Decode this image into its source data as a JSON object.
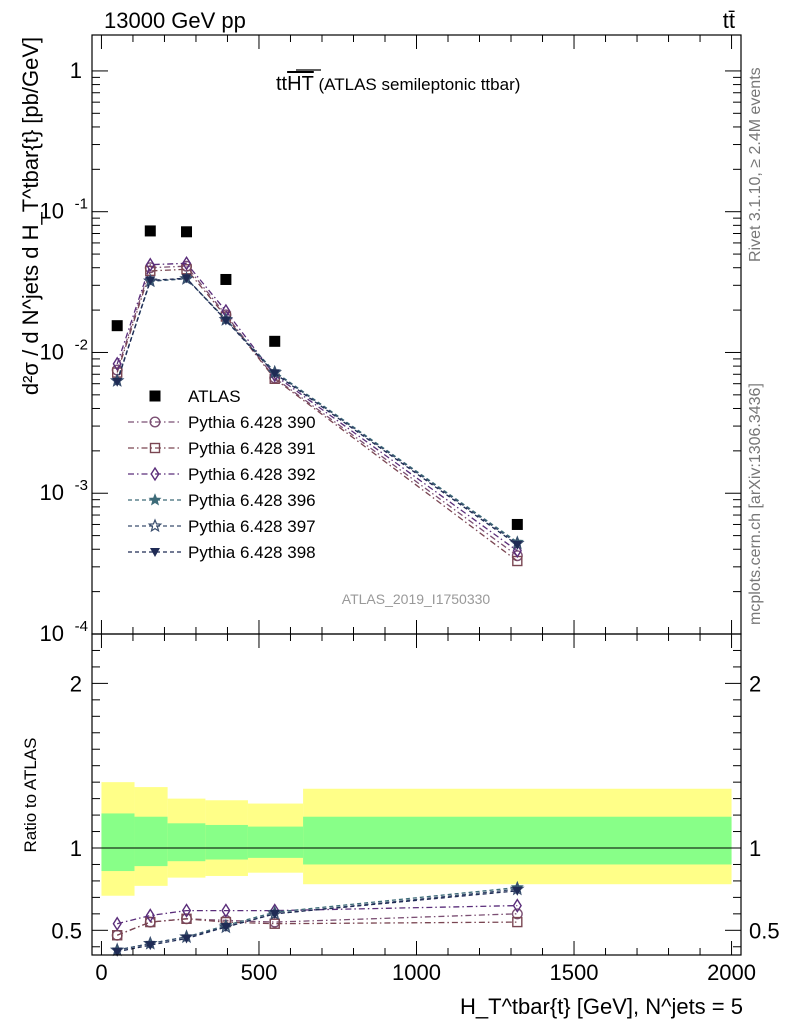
{
  "header": {
    "left": "13000 GeV pp",
    "right": "tt̄"
  },
  "side_notes": {
    "rivet": "Rivet 3.1.10, ≥ 2.4M events",
    "mcplots": "mcplots.cern.ch [arXiv:1306.3436]"
  },
  "chart_data": [
    {
      "type": "scatter",
      "panel": "main",
      "title": "ttHT (ATLAS semileptonic ttbar)",
      "watermark": "ATLAS_2019_I1750330",
      "ylabel": "d²σ / d N^jets d H_T^tbar{t} [pb/GeV]",
      "yscale": "log",
      "ylim": [
        0.0001,
        1.8
      ],
      "yticks": [
        "10^-4",
        "10^-3",
        "10^-2",
        "10^-1",
        "1"
      ],
      "x": [
        50,
        155,
        270,
        395,
        550,
        1320
      ],
      "series": [
        {
          "name": "ATLAS",
          "values": [
            0.0155,
            0.073,
            0.072,
            0.033,
            0.012,
            0.0006
          ],
          "color": "#000000",
          "marker": "square-filled"
        },
        {
          "name": "Pythia 6.428 390",
          "values": [
            0.0075,
            0.04,
            0.041,
            0.0185,
            0.0066,
            0.00036
          ],
          "color": "#7b4f73",
          "marker": "circle-open"
        },
        {
          "name": "Pythia 6.428 391",
          "values": [
            0.0072,
            0.038,
            0.039,
            0.018,
            0.0065,
            0.00033
          ],
          "color": "#7a4652",
          "marker": "square-open"
        },
        {
          "name": "Pythia 6.428 392",
          "values": [
            0.0083,
            0.042,
            0.043,
            0.0197,
            0.0069,
            0.00039
          ],
          "color": "#5a2d7a",
          "marker": "diamond-open"
        },
        {
          "name": "Pythia 6.428 396",
          "values": [
            0.0063,
            0.032,
            0.0335,
            0.0172,
            0.0073,
            0.00045
          ],
          "color": "#3d6b78",
          "marker": "star-filled"
        },
        {
          "name": "Pythia 6.428 397",
          "values": [
            0.0063,
            0.0322,
            0.0334,
            0.0171,
            0.0072,
            0.00044
          ],
          "color": "#3a4e6e",
          "marker": "star-open"
        },
        {
          "name": "Pythia 6.428 398",
          "values": [
            0.0062,
            0.0325,
            0.0337,
            0.0169,
            0.0071,
            0.00043
          ],
          "color": "#1f2b55",
          "marker": "triangle-down-filled"
        }
      ]
    },
    {
      "type": "line",
      "panel": "ratio",
      "ylabel": "Ratio to ATLAS",
      "xlabel": "H_T^tbar{t} [GeV], N^jets = 5",
      "xlim": [
        -30,
        2030
      ],
      "ylim": [
        0.35,
        2.3
      ],
      "xticks": [
        0,
        500,
        1000,
        1500,
        2000
      ],
      "yticks": [
        0.5,
        1,
        2
      ],
      "bands": {
        "bins": [
          [
            0,
            105
          ],
          [
            105,
            210
          ],
          [
            210,
            330
          ],
          [
            330,
            465
          ],
          [
            465,
            640
          ],
          [
            640,
            2000
          ]
        ],
        "yellow": [
          [
            0.71,
            1.4
          ],
          [
            0.77,
            1.37
          ],
          [
            0.82,
            1.3
          ],
          [
            0.83,
            1.29
          ],
          [
            0.85,
            1.27
          ],
          [
            0.78,
            1.36
          ]
        ],
        "green": [
          [
            0.86,
            1.21
          ],
          [
            0.89,
            1.19
          ],
          [
            0.92,
            1.15
          ],
          [
            0.93,
            1.14
          ],
          [
            0.94,
            1.13
          ],
          [
            0.9,
            1.19
          ]
        ],
        "yellow_color": "#ffff88",
        "green_color": "#88ff88"
      },
      "x": [
        50,
        155,
        270,
        395,
        550,
        1320
      ],
      "series": [
        {
          "name": "Pythia 6.428 390",
          "values": [
            0.47,
            0.55,
            0.57,
            0.56,
            0.55,
            0.6
          ],
          "color": "#7b4f73",
          "marker": "circle-open"
        },
        {
          "name": "Pythia 6.428 391",
          "values": [
            0.47,
            0.55,
            0.57,
            0.55,
            0.54,
            0.55
          ],
          "color": "#7a4652",
          "marker": "square-open"
        },
        {
          "name": "Pythia 6.428 392",
          "values": [
            0.54,
            0.59,
            0.62,
            0.62,
            0.62,
            0.65
          ],
          "color": "#5a2d7a",
          "marker": "diamond-open"
        },
        {
          "name": "Pythia 6.428 396",
          "values": [
            0.38,
            0.42,
            0.46,
            0.53,
            0.61,
            0.76
          ],
          "color": "#3d6b78",
          "marker": "star-filled"
        },
        {
          "name": "Pythia 6.428 397",
          "values": [
            0.38,
            0.42,
            0.46,
            0.52,
            0.6,
            0.75
          ],
          "color": "#3a4e6e",
          "marker": "star-open"
        },
        {
          "name": "Pythia 6.428 398",
          "values": [
            0.37,
            0.41,
            0.45,
            0.52,
            0.6,
            0.74
          ],
          "color": "#1f2b55",
          "marker": "triangle-down-filled"
        }
      ]
    }
  ]
}
